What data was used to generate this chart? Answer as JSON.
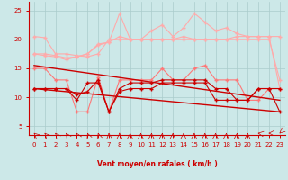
{
  "bg_color": "#cce8e8",
  "grid_color": "#aacccc",
  "xlabel": "Vent moyen/en rafales ( km/h )",
  "xticks": [
    0,
    1,
    2,
    3,
    4,
    5,
    6,
    7,
    8,
    9,
    10,
    11,
    12,
    13,
    14,
    15,
    16,
    17,
    18,
    19,
    20,
    21,
    22,
    23
  ],
  "yticks": [
    5,
    10,
    15,
    20,
    25
  ],
  "ylim": [
    3.5,
    26.5
  ],
  "xlim": [
    -0.5,
    23.5
  ],
  "c_lpink": "#ffaaaa",
  "c_mpink": "#ff7777",
  "c_dark": "#cc0000",
  "s1": [
    20.5,
    20.3,
    17.5,
    17.5,
    17.2,
    17.0,
    17.5,
    20.0,
    20.0,
    20.0,
    20.0,
    20.0,
    20.0,
    20.0,
    20.5,
    20.0,
    20.0,
    20.0,
    20.0,
    20.5,
    20.5,
    20.5,
    20.5,
    20.5
  ],
  "s2": [
    17.5,
    17.2,
    17.0,
    16.5,
    17.0,
    17.5,
    19.2,
    19.5,
    24.5,
    20.0,
    20.0,
    21.5,
    22.5,
    20.5,
    22.0,
    24.5,
    23.0,
    21.5,
    22.0,
    21.0,
    20.5,
    20.5,
    20.5,
    11.5
  ],
  "s3": [
    17.5,
    17.5,
    17.2,
    16.8,
    17.0,
    17.5,
    19.0,
    19.5,
    20.5,
    20.0,
    20.0,
    20.0,
    20.0,
    20.0,
    20.0,
    20.0,
    20.0,
    20.0,
    20.0,
    20.0,
    20.0,
    20.0,
    20.0,
    13.0
  ],
  "s4": [
    15.0,
    15.0,
    13.0,
    13.0,
    7.5,
    7.5,
    13.5,
    7.5,
    13.0,
    13.0,
    13.0,
    13.0,
    15.0,
    13.0,
    13.0,
    15.0,
    15.5,
    13.0,
    13.0,
    13.0,
    9.5,
    9.5,
    11.5,
    11.5
  ],
  "s5": [
    11.5,
    11.5,
    11.5,
    11.5,
    9.5,
    12.5,
    12.5,
    7.5,
    11.5,
    12.5,
    12.5,
    12.5,
    13.0,
    13.0,
    13.0,
    13.0,
    13.0,
    11.5,
    11.5,
    9.5,
    9.5,
    11.5,
    11.5,
    11.5
  ],
  "s6": [
    11.5,
    11.5,
    11.5,
    11.5,
    10.5,
    11.0,
    13.0,
    7.5,
    11.0,
    11.5,
    11.5,
    11.5,
    12.5,
    12.5,
    12.5,
    12.5,
    12.5,
    9.5,
    9.5,
    9.5,
    9.5,
    11.5,
    11.5,
    7.5
  ],
  "trend1_x": [
    0,
    23
  ],
  "trend1_y": [
    15.5,
    9.5
  ],
  "trend2_x": [
    0,
    23
  ],
  "trend2_y": [
    11.5,
    7.5
  ],
  "axis_color": "#cc0000",
  "tick_color": "#cc0000",
  "label_color": "#cc0000",
  "arrow_rotations": [
    225,
    220,
    215,
    210,
    205,
    200,
    195,
    185,
    180,
    178,
    178,
    178,
    178,
    178,
    178,
    178,
    178,
    178,
    178,
    178,
    178,
    260,
    270,
    315
  ]
}
